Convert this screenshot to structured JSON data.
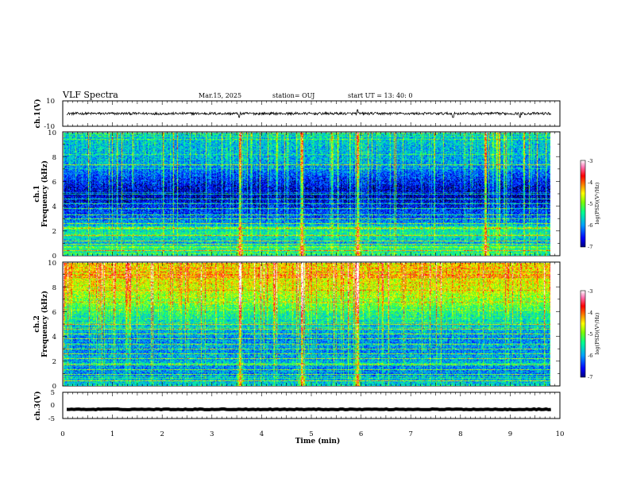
{
  "header": {
    "title": "VLF Spectra",
    "date": "Mar.15, 2025",
    "station": "station= OUJ",
    "start": "start  UT =   13: 40: 0"
  },
  "colors": {
    "spectrogram_background": "#05082e",
    "trace": "#000000",
    "colorbar_stops": [
      "#000080",
      "#0000ff",
      "#00b0ff",
      "#00ff80",
      "#80ff00",
      "#ffff00",
      "#ff8000",
      "#ff0000",
      "#ff60a0",
      "#ffffff"
    ]
  },
  "chart_data": [
    {
      "type": "line",
      "name": "ch1-waveform",
      "ylabel": "ch.1(V)",
      "ylim": [
        -10,
        10
      ],
      "ytick_labels": [
        "10",
        "-10"
      ],
      "baseline": 0,
      "noise_amplitude": 1.0,
      "spikes": [
        {
          "x": 3.55,
          "y": -3
        },
        {
          "x": 5.93,
          "y": 3
        },
        {
          "x": 7.85,
          "y": -3
        },
        {
          "x": 9.2,
          "y": -3
        }
      ]
    },
    {
      "type": "heatmap",
      "name": "ch1-spectrogram",
      "ylabel": "ch.1\nFrequency (kHz)",
      "ylabel_lines": [
        "ch.1",
        "Frequency (kHz)"
      ],
      "ylim": [
        0,
        10
      ],
      "ytick_labels": [
        "0",
        "2",
        "4",
        "6",
        "8",
        "10"
      ],
      "colorbar": {
        "label": "log(PSD)(V²/Hz)",
        "range": [
          -7,
          -3
        ],
        "tick_labels": [
          "-3",
          "-4",
          "-5",
          "-6",
          "-7"
        ]
      },
      "level_profile": [
        {
          "f": 0.0,
          "level": -5.6
        },
        {
          "f": 0.6,
          "level": -5.4
        },
        {
          "f": 1.0,
          "level": -6.0
        },
        {
          "f": 1.8,
          "level": -5.5
        },
        {
          "f": 3.0,
          "level": -6.3
        },
        {
          "f": 4.3,
          "level": -6.7
        },
        {
          "f": 5.0,
          "level": -6.9
        },
        {
          "f": 6.0,
          "level": -6.6
        },
        {
          "f": 7.5,
          "level": -6.0
        },
        {
          "f": 10.0,
          "level": -5.8
        }
      ],
      "tonal_lines_khz": [
        0.4,
        0.9,
        1.2,
        1.6,
        2.2,
        2.6,
        3.0,
        3.3,
        3.8,
        4.2,
        4.6,
        5.0,
        7.4
      ],
      "burst_times_min": [
        3.55,
        4.8,
        5.93,
        8.5
      ]
    },
    {
      "type": "heatmap",
      "name": "ch2-spectrogram",
      "ylabel": "ch.2\nFrequency (kHz)",
      "ylabel_lines": [
        "ch.2",
        "Frequency (kHz)"
      ],
      "ylim": [
        0,
        10
      ],
      "ytick_labels": [
        "0",
        "2",
        "4",
        "6",
        "8",
        "10"
      ],
      "colorbar": {
        "label": "log(PSD)(V²/Hz)",
        "range": [
          -7,
          -3
        ],
        "tick_labels": [
          "-3",
          "-4",
          "-5",
          "-6",
          "-7"
        ]
      },
      "level_profile": [
        {
          "f": 0.0,
          "level": -5.7
        },
        {
          "f": 1.0,
          "level": -6.2
        },
        {
          "f": 2.0,
          "level": -6.0
        },
        {
          "f": 3.5,
          "level": -6.2
        },
        {
          "f": 5.0,
          "level": -5.8
        },
        {
          "f": 6.5,
          "level": -5.2
        },
        {
          "f": 8.0,
          "level": -4.7
        },
        {
          "f": 10.0,
          "level": -4.5
        }
      ],
      "tonal_lines_khz": [
        0.4,
        0.9,
        1.3,
        1.7,
        2.2,
        2.6,
        3.0,
        3.4,
        3.8,
        4.2,
        4.6,
        5.0
      ],
      "burst_times_min": [
        3.55,
        4.8,
        5.93
      ]
    },
    {
      "type": "line",
      "name": "ch3-waveform",
      "ylabel": "ch.3(V)",
      "ylim": [
        -5,
        5
      ],
      "ytick_labels": [
        "5",
        "0",
        "-5"
      ],
      "baseline": -1.5,
      "noise_amplitude": 0.15
    }
  ],
  "xaxis": {
    "label": "Time (min)",
    "range": [
      0,
      10
    ],
    "tick_labels": [
      "0",
      "1",
      "2",
      "3",
      "4",
      "5",
      "6",
      "7",
      "8",
      "9",
      "10"
    ],
    "data_end": 9.82
  }
}
